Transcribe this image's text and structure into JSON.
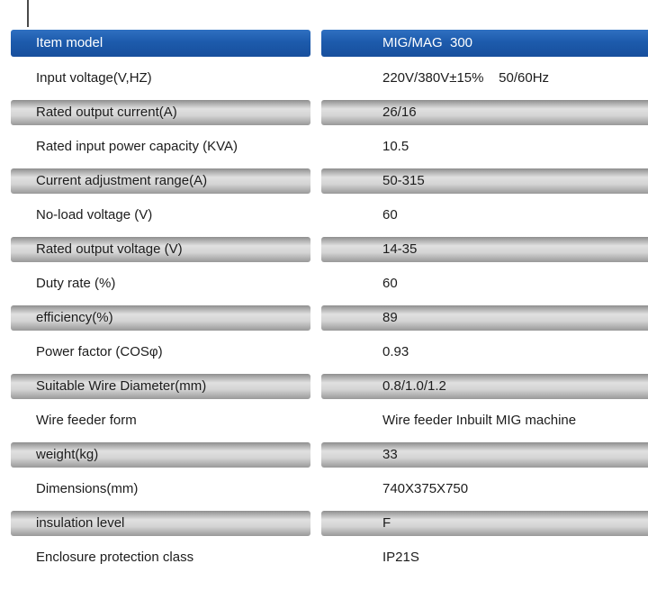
{
  "table": {
    "header": {
      "label": "Item model",
      "value": "MIG/MAG  300"
    },
    "rows": [
      {
        "label": "Input voltage(V,HZ)",
        "value": "220V/380V±15%    50/60Hz"
      },
      {
        "label": "Rated output current(A)",
        "value": "26/16"
      },
      {
        "label": "Rated input power capacity (KVA)",
        "value": "10.5"
      },
      {
        "label": "Current adjustment range(A)",
        "value": "50-315"
      },
      {
        "label": "No-load voltage (V)",
        "value": "60"
      },
      {
        "label": "Rated output voltage (V)",
        "value": "14-35"
      },
      {
        "label": "Duty rate (%)",
        "value": "60"
      },
      {
        "label": "efficiency(%)",
        "value": "89"
      },
      {
        "label": "Power factor (COSφ)",
        "value": "0.93"
      },
      {
        "label": "Suitable Wire Diameter(mm)",
        "value": "0.8/1.0/1.2"
      },
      {
        "label": "Wire feeder form",
        "value": "Wire feeder Inbuilt MIG machine"
      },
      {
        "label": "weight(kg)",
        "value": "33"
      },
      {
        "label": "Dimensions(mm)",
        "value": "740X375X750"
      },
      {
        "label": "insulation level",
        "value": "F"
      },
      {
        "label": "Enclosure protection class",
        "value": "IP21S"
      }
    ],
    "colors": {
      "header_bg": "#1d5bac",
      "header_text": "#ffffff",
      "shaded_bar": "#c9c9c9",
      "body_text": "#1c1c1c"
    }
  }
}
